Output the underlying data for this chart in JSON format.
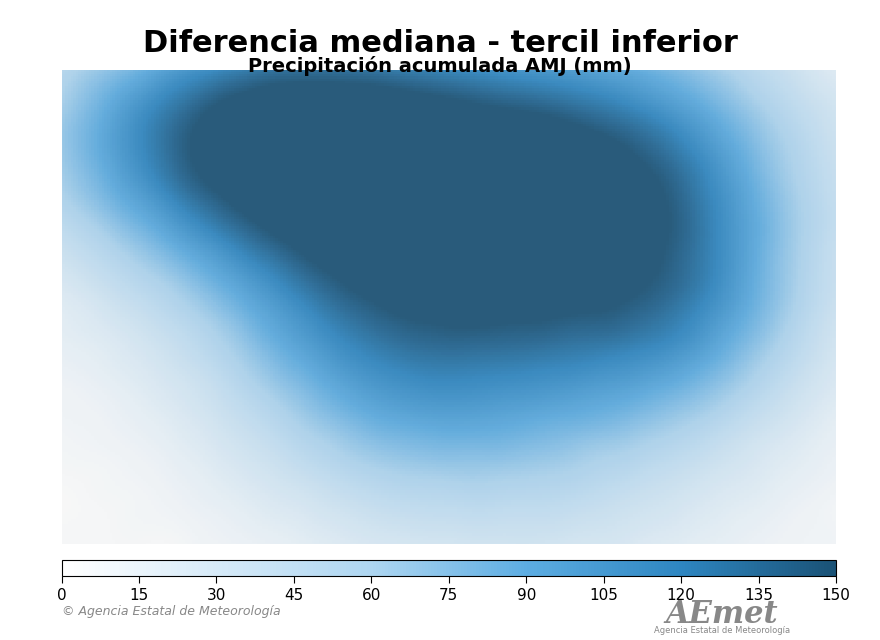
{
  "title": "Diferencia mediana - tercil inferior",
  "subtitle": "Precipitación acumulada AMJ (mm)",
  "title_fontsize": 22,
  "subtitle_fontsize": 14,
  "background_color": "#ffffff",
  "map_bg_color": "#b0b0b0",
  "colorbar_min": 0,
  "colorbar_max": 150,
  "colorbar_ticks": [
    0,
    15,
    30,
    45,
    60,
    75,
    90,
    105,
    120,
    135,
    150
  ],
  "colormap_colors": [
    "#ffffff",
    "#d6eaf8",
    "#aed6f1",
    "#5dade2",
    "#2e86c1",
    "#1a5276"
  ],
  "copyright_text": "© Agencia Estatal de Meteorología",
  "fig_width": 8.8,
  "fig_height": 6.4,
  "dpi": 100
}
